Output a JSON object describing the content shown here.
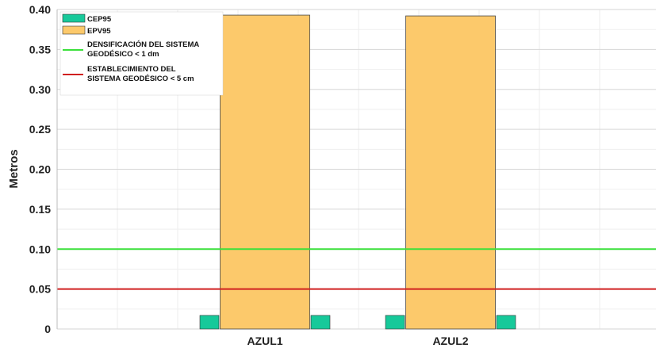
{
  "chart_data": {
    "type": "bar",
    "title": "",
    "xlabel": "",
    "ylabel": "Metros",
    "ylim": [
      0,
      0.4
    ],
    "yticks": [
      "0",
      "0.05",
      "0.10",
      "0.15",
      "0.20",
      "0.25",
      "0.30",
      "0.35",
      "0.40"
    ],
    "categories": [
      "AZUL1",
      "AZUL2"
    ],
    "series": [
      {
        "name": "CEP95",
        "color": "#17c99a",
        "values": [
          0.017,
          0.017
        ]
      },
      {
        "name": "EPV95",
        "color": "#fcc96b",
        "values": [
          0.393,
          0.392
        ]
      }
    ],
    "reference_lines": [
      {
        "label_lines": [
          "DENSIFICACIÓN DEL SISTEMA",
          "GEODÉSICO < 1 dm"
        ],
        "value": 0.1,
        "color": "#3be03b"
      },
      {
        "label_lines": [
          "ESTABLECIMIENTO DEL",
          "SISTEMA GEODÉSICO < 5 cm"
        ],
        "value": 0.05,
        "color": "#d02020"
      }
    ],
    "grid": true,
    "minor_grid": true,
    "legend_position": "top-left"
  }
}
